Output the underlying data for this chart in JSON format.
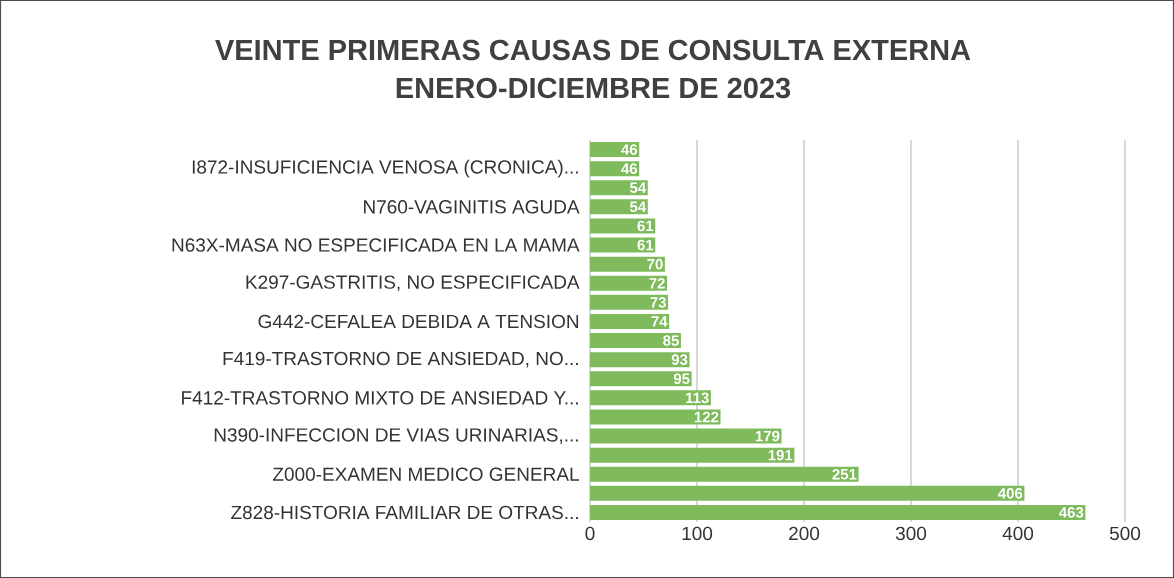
{
  "chart_data": {
    "type": "bar",
    "orientation": "horizontal",
    "title": "VEINTE PRIMERAS CAUSAS DE CONSULTA EXTERNA",
    "subtitle": "ENERO-DICIEMBRE DE 2023",
    "categories": [
      null,
      "I872-INSUFICIENCIA VENOSA (CRONICA)...",
      null,
      "N760-VAGINITIS AGUDA",
      null,
      "N63X-MASA NO ESPECIFICADA EN LA MAMA",
      null,
      "K297-GASTRITIS, NO ESPECIFICADA",
      null,
      "G442-CEFALEA DEBIDA A TENSION",
      null,
      "F419-TRASTORNO DE ANSIEDAD, NO...",
      null,
      "F412-TRASTORNO MIXTO DE ANSIEDAD Y...",
      null,
      "N390-INFECCION DE VIAS URINARIAS,...",
      null,
      "Z000-EXAMEN MEDICO GENERAL",
      null,
      "Z828-HISTORIA FAMILIAR DE OTRAS..."
    ],
    "values": [
      46,
      46,
      54,
      54,
      61,
      61,
      70,
      72,
      73,
      74,
      85,
      93,
      95,
      113,
      122,
      179,
      191,
      251,
      406,
      463
    ],
    "color": "#7fba5c",
    "xlim": [
      0,
      500
    ],
    "xticks": [
      0,
      100,
      200,
      300,
      400,
      500
    ],
    "grid": "x",
    "data_labels": true
  }
}
